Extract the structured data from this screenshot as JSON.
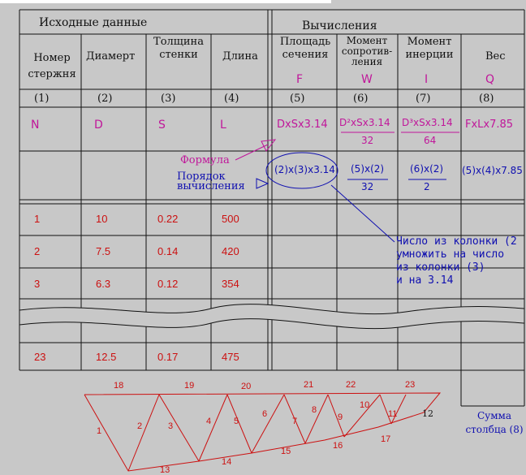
{
  "header": {
    "source_label": "Исходные данные",
    "calc_label": "Вычисления"
  },
  "columns": [
    {
      "title": "Номер\nстержня",
      "num": "(1)",
      "sym": "N",
      "order": ""
    },
    {
      "title": "Диамерт",
      "num": "(2)",
      "sym": "D",
      "order": ""
    },
    {
      "title": "Толщина\nстенки",
      "num": "(3)",
      "sym": "S",
      "order": ""
    },
    {
      "title": "Длина",
      "num": "(4)",
      "sym": "L",
      "order": ""
    },
    {
      "title": "Площадь\nсечения",
      "letter": "F",
      "num": "(5)",
      "sym": "DxSx3.14",
      "order": "(2)x(3)x3.14"
    },
    {
      "title": "Момент\nсопротив-\nления",
      "letter": "W",
      "num": "(6)",
      "sym_num": "D²xSx3.14",
      "sym_den": "32",
      "order_num": "(5)x(2)",
      "order_den": "32"
    },
    {
      "title": "Момент\nинерции",
      "letter": "I",
      "num": "(7)",
      "sym_num": "D³xSx3.14",
      "sym_den": "64",
      "order_num": "(6)x(2)",
      "order_den": "2"
    },
    {
      "title": "Вес",
      "letter": "Q",
      "num": "(8)",
      "sym": "FxLx7.85",
      "order": "(5)x(4)x7.85"
    }
  ],
  "annotations": {
    "formula": "Формула",
    "order": "Порядок\nвычисления",
    "note": "Число из колонки (2\nумножить на число\nиз колонки (3)\nи на 3.14",
    "sum": "Сумма\nстолбца (8)"
  },
  "rows": [
    {
      "n": "1",
      "d": "10",
      "s": "0.22",
      "l": "500"
    },
    {
      "n": "2",
      "d": "7.5",
      "s": "0.14",
      "l": "420"
    },
    {
      "n": "3",
      "d": "6.3",
      "s": "0.12",
      "l": "354"
    },
    {
      "n": "23",
      "d": "12.5",
      "s": "0.17",
      "l": "475"
    }
  ],
  "truss_labels": [
    "1",
    "2",
    "3",
    "4",
    "5",
    "6",
    "7",
    "8",
    "9",
    "10",
    "11",
    "12",
    "13",
    "14",
    "15",
    "16",
    "17",
    "18",
    "19",
    "20",
    "21",
    "22",
    "23"
  ],
  "colors": {
    "background": "#c8c8c8",
    "grid": "#111111",
    "formula": "#c0169a",
    "data": "#cc1010",
    "annotation": "#1010b0"
  }
}
